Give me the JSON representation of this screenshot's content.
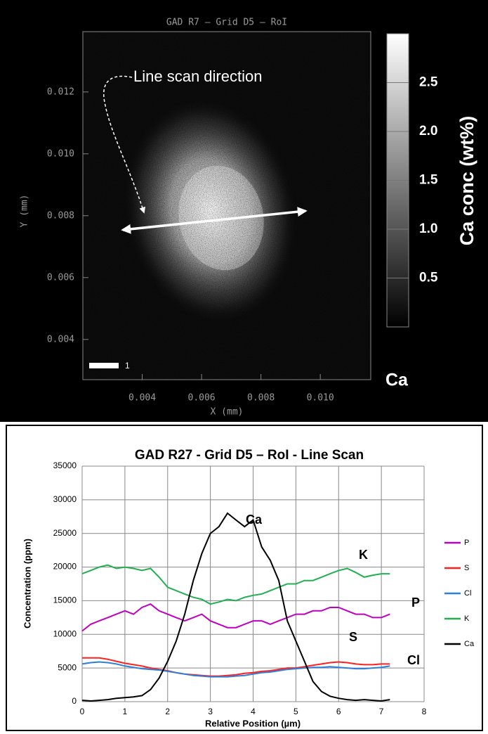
{
  "chart_data": [
    {
      "type": "heatmap",
      "title": "GAD R7 – Grid D5 – RoI",
      "xlabel": "X (mm)",
      "ylabel": "Y (mm)",
      "xlim": [
        0.002,
        0.0117
      ],
      "xticks": [
        0.004,
        0.006,
        0.008,
        {
          "value": 0.01,
          "label": "0.010"
        }
      ],
      "ylim": [
        0.0027,
        0.01395
      ],
      "yticks": [
        0.004,
        0.006,
        0.008,
        {
          "value": 0.01,
          "label": "0.010"
        },
        0.012
      ],
      "colorbar_label": "Ca conc (wt%)",
      "clim": [
        0,
        3
      ],
      "cticks": [
        0.5,
        {
          "value": 1,
          "label": "1.0"
        },
        1.5,
        {
          "value": 2,
          "label": "2.0"
        },
        2.5
      ],
      "annotation": "Line scan direction",
      "element": "Ca",
      "scale_bar_label": "1"
    },
    {
      "type": "line",
      "title": "GAD R27 - Grid D5 – RoI - Line Scan",
      "xlabel": "Relative Position (µm)",
      "ylabel": "Concentration (ppm)",
      "xlim": [
        0,
        8
      ],
      "xticks": [
        0,
        1,
        2,
        3,
        4,
        5,
        6,
        7,
        8
      ],
      "ylim": [
        0,
        35000
      ],
      "yticks": [
        0,
        5000,
        10000,
        15000,
        20000,
        25000,
        30000,
        35000
      ],
      "grid": true,
      "legend": "right",
      "x": [
        0,
        0.2,
        0.4,
        0.6,
        0.8,
        1,
        1.2,
        1.4,
        1.6,
        1.8,
        2,
        2.2,
        2.4,
        2.6,
        2.8,
        3,
        3.2,
        3.4,
        3.6,
        3.8,
        4,
        4.2,
        4.4,
        4.6,
        4.8,
        5,
        5.2,
        5.4,
        5.6,
        5.8,
        6,
        6.2,
        6.4,
        6.6,
        6.8,
        7,
        7.2
      ],
      "series": [
        {
          "name": "P",
          "color": "#c000c0",
          "values": [
            10500,
            11500,
            12000,
            12500,
            13000,
            13500,
            13000,
            14000,
            14500,
            13500,
            13000,
            12500,
            12000,
            12500,
            13000,
            12000,
            11500,
            11000,
            11000,
            11500,
            12000,
            12000,
            11500,
            12000,
            12500,
            13000,
            13000,
            13500,
            13500,
            14000,
            14000,
            13500,
            13000,
            13000,
            12500,
            12500,
            13000
          ]
        },
        {
          "name": "S",
          "color": "#ff2020",
          "values": [
            6500,
            6500,
            6500,
            6300,
            6000,
            5700,
            5500,
            5300,
            5000,
            4800,
            4600,
            4300,
            4100,
            4000,
            3900,
            3800,
            3800,
            3900,
            4000,
            4200,
            4300,
            4500,
            4600,
            4800,
            5000,
            5000,
            5200,
            5400,
            5600,
            5800,
            5900,
            5800,
            5600,
            5500,
            5500,
            5600,
            5600
          ]
        },
        {
          "name": "Cl",
          "color": "#2f7fd8",
          "values": [
            5600,
            5800,
            5900,
            5800,
            5600,
            5300,
            5100,
            4900,
            4800,
            4700,
            4500,
            4300,
            4100,
            3900,
            3800,
            3700,
            3700,
            3700,
            3800,
            3900,
            4100,
            4300,
            4400,
            4600,
            4800,
            4900,
            5000,
            5100,
            5100,
            5200,
            5100,
            5000,
            4900,
            4900,
            5000,
            5100,
            5300
          ]
        },
        {
          "name": "K",
          "color": "#20b050",
          "values": [
            19000,
            19500,
            20000,
            20300,
            19800,
            20000,
            19800,
            19500,
            19800,
            18500,
            17000,
            16500,
            16000,
            15500,
            15200,
            14500,
            14800,
            15200,
            15000,
            15500,
            15800,
            16000,
            16500,
            17000,
            17500,
            17500,
            18000,
            18000,
            18500,
            19000,
            19500,
            19800,
            19200,
            18500,
            18800,
            19000,
            19000
          ]
        },
        {
          "name": "Ca",
          "color": "#000000",
          "values": [
            200,
            100,
            200,
            300,
            500,
            600,
            700,
            900,
            1800,
            3500,
            6000,
            9000,
            13000,
            18000,
            22000,
            25000,
            26000,
            28000,
            27000,
            26000,
            27000,
            23000,
            21000,
            18000,
            12000,
            9000,
            6000,
            3000,
            1500,
            800,
            500,
            300,
            200,
            300,
            200,
            100,
            300
          ]
        }
      ],
      "annotations": [
        "Ca",
        "K",
        "P",
        "S",
        "Cl"
      ]
    }
  ]
}
